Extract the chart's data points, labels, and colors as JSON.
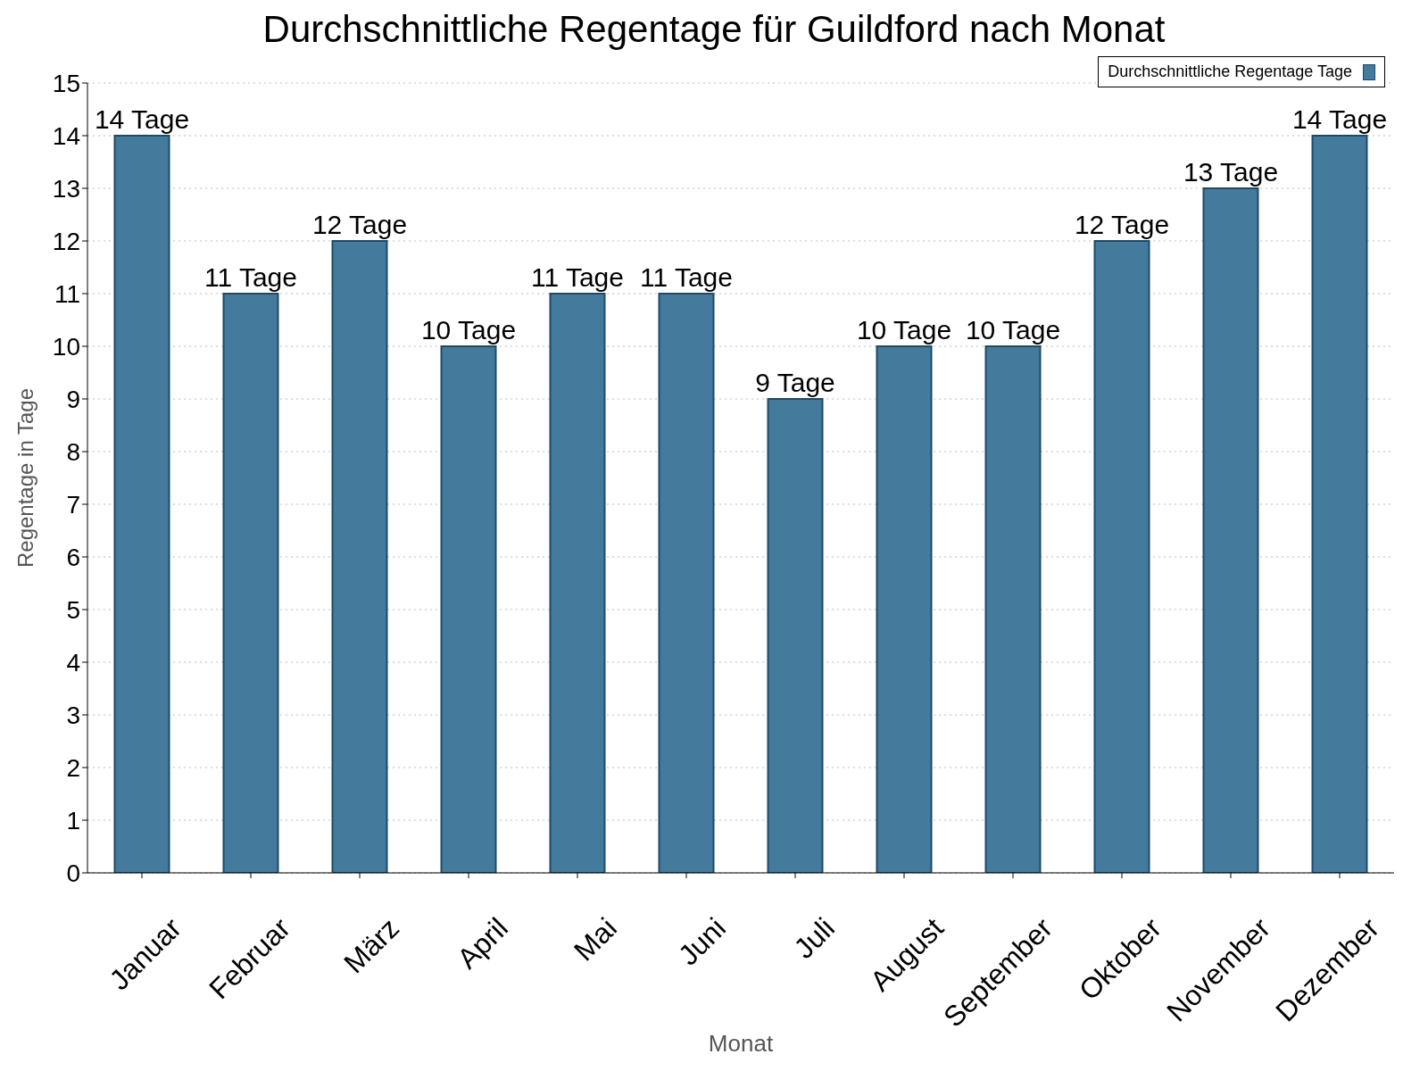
{
  "chart_data": {
    "type": "bar",
    "title": "Durchschnittliche Regentage für Guildford nach Monat",
    "xlabel": "Monat",
    "ylabel": "Regentage in Tage",
    "categories": [
      "Januar",
      "Februar",
      "März",
      "April",
      "Mai",
      "Juni",
      "Juli",
      "August",
      "September",
      "Oktober",
      "November",
      "Dezember"
    ],
    "series": [
      {
        "name": "Durchschnittliche Regentage Tage",
        "color": "#447a9c",
        "values": [
          14,
          11,
          12,
          10,
          11,
          11,
          9,
          10,
          10,
          12,
          13,
          14
        ],
        "value_labels": [
          "14 Tage",
          "11 Tage",
          "12 Tage",
          "10 Tage",
          "11 Tage",
          "11 Tage",
          "9 Tage",
          "10 Tage",
          "10 Tage",
          "12 Tage",
          "13 Tage",
          "14 Tage"
        ]
      }
    ],
    "ylim": [
      0,
      15
    ],
    "yticks": [
      0,
      1,
      2,
      3,
      4,
      5,
      6,
      7,
      8,
      9,
      10,
      11,
      12,
      13,
      14,
      15
    ],
    "grid": "y",
    "legend": "top right"
  }
}
